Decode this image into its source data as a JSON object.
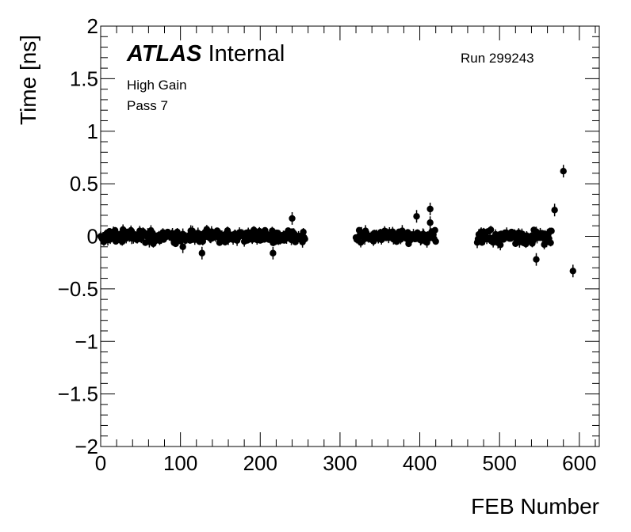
{
  "chart_data": {
    "type": "scatter",
    "xlabel": "FEB Number",
    "ylabel": "Time [ns]",
    "xlim": [
      0,
      625
    ],
    "ylim": [
      -2,
      2
    ],
    "x_ticks": [
      0,
      100,
      200,
      300,
      400,
      500,
      600
    ],
    "x_tick_labels": [
      "0",
      "100",
      "200",
      "300",
      "400",
      "500",
      "600"
    ],
    "y_ticks": [
      -2,
      -1.5,
      -1,
      -0.5,
      0,
      0.5,
      1,
      1.5,
      2
    ],
    "y_tick_labels": [
      "−2",
      "−1.5",
      "−1",
      "−0.5",
      "0",
      "0.5",
      "1",
      "1.5",
      "2"
    ],
    "grid": false,
    "error_bars": true,
    "experiment_label": "ATLAS",
    "status_label": "Internal",
    "run_label": "Run 299243",
    "annotations": [
      "High Gain",
      "Pass 7"
    ],
    "marker_color": "#000000",
    "clusters": [
      {
        "x_range": [
          0,
          256
        ],
        "typical_y_range": [
          -0.08,
          0.08
        ]
      },
      {
        "x_range": [
          320,
          420
        ],
        "typical_y_range": [
          -0.08,
          0.08
        ]
      },
      {
        "x_range": [
          472,
          565
        ],
        "typical_y_range": [
          -0.1,
          0.08
        ]
      }
    ],
    "notable_points": [
      {
        "x": 103,
        "y": -0.1
      },
      {
        "x": 127,
        "y": -0.16
      },
      {
        "x": 216,
        "y": -0.16
      },
      {
        "x": 240,
        "y": 0.17
      },
      {
        "x": 396,
        "y": 0.19
      },
      {
        "x": 413,
        "y": 0.26
      },
      {
        "x": 413,
        "y": 0.13
      },
      {
        "x": 546,
        "y": -0.22
      },
      {
        "x": 569,
        "y": 0.25
      },
      {
        "x": 580,
        "y": 0.62
      },
      {
        "x": 592,
        "y": -0.33
      }
    ]
  }
}
